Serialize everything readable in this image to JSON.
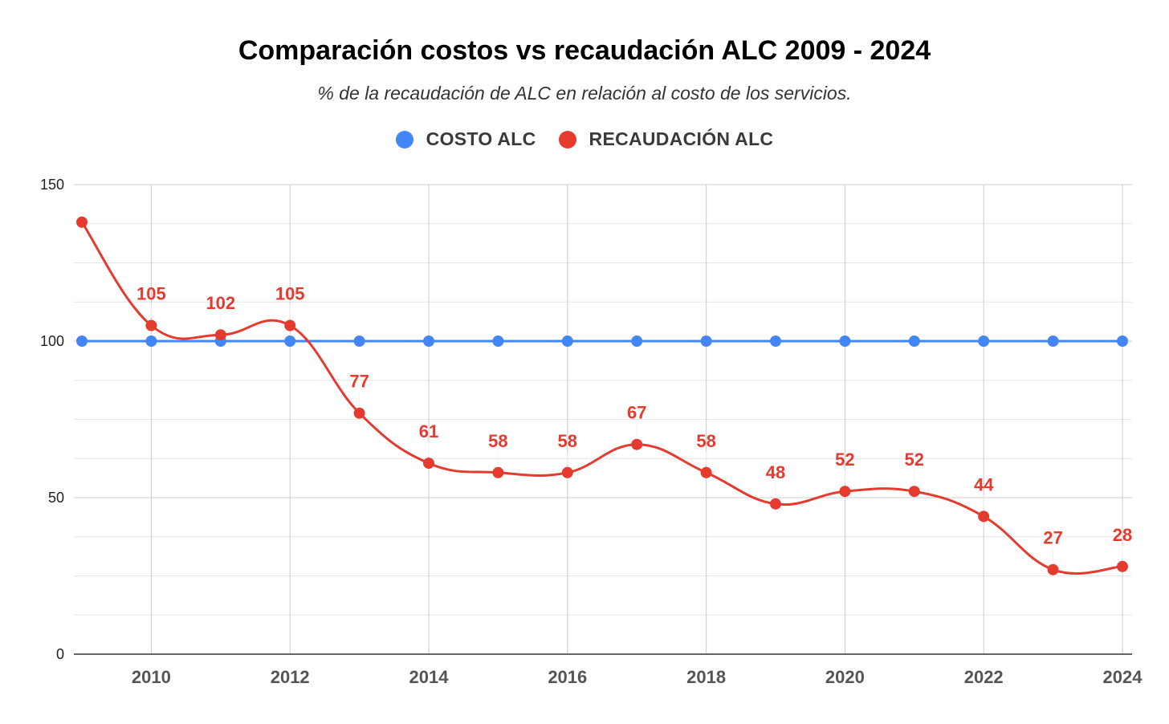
{
  "chart_data": {
    "type": "line",
    "title": "Comparación costos vs recaudación ALC 2009 - 2024",
    "subtitle": "% de la recaudación de ALC en relación al costo de los servicios.",
    "x": [
      2009,
      2010,
      2011,
      2012,
      2013,
      2014,
      2015,
      2016,
      2017,
      2018,
      2019,
      2020,
      2021,
      2022,
      2023,
      2024
    ],
    "x_tick_labels": [
      "2010",
      "2012",
      "2014",
      "2016",
      "2018",
      "2020",
      "2022",
      "2024"
    ],
    "x_tick_values": [
      2010,
      2012,
      2014,
      2016,
      2018,
      2020,
      2022,
      2024
    ],
    "y_tick_labels": [
      "0",
      "50",
      "100",
      "150"
    ],
    "y_tick_values": [
      0,
      50,
      100,
      150
    ],
    "xlim": [
      2009,
      2024
    ],
    "ylim": [
      0,
      150
    ],
    "grid": true,
    "legend_position": "top-center",
    "series": [
      {
        "name": "COSTO ALC",
        "color": "#4285f4",
        "values": [
          100,
          100,
          100,
          100,
          100,
          100,
          100,
          100,
          100,
          100,
          100,
          100,
          100,
          100,
          100,
          100
        ],
        "show_labels": false
      },
      {
        "name": "RECAUDACIÓN ALC",
        "color": "#e53b2f",
        "values": [
          138,
          105,
          102,
          105,
          77,
          61,
          58,
          58,
          67,
          58,
          48,
          52,
          52,
          44,
          27,
          28
        ],
        "labels": [
          "",
          "105",
          "102",
          "105",
          "77",
          "61",
          "58",
          "58",
          "67",
          "58",
          "48",
          "52",
          "52",
          "44",
          "27",
          "28"
        ],
        "show_labels": true
      }
    ]
  }
}
